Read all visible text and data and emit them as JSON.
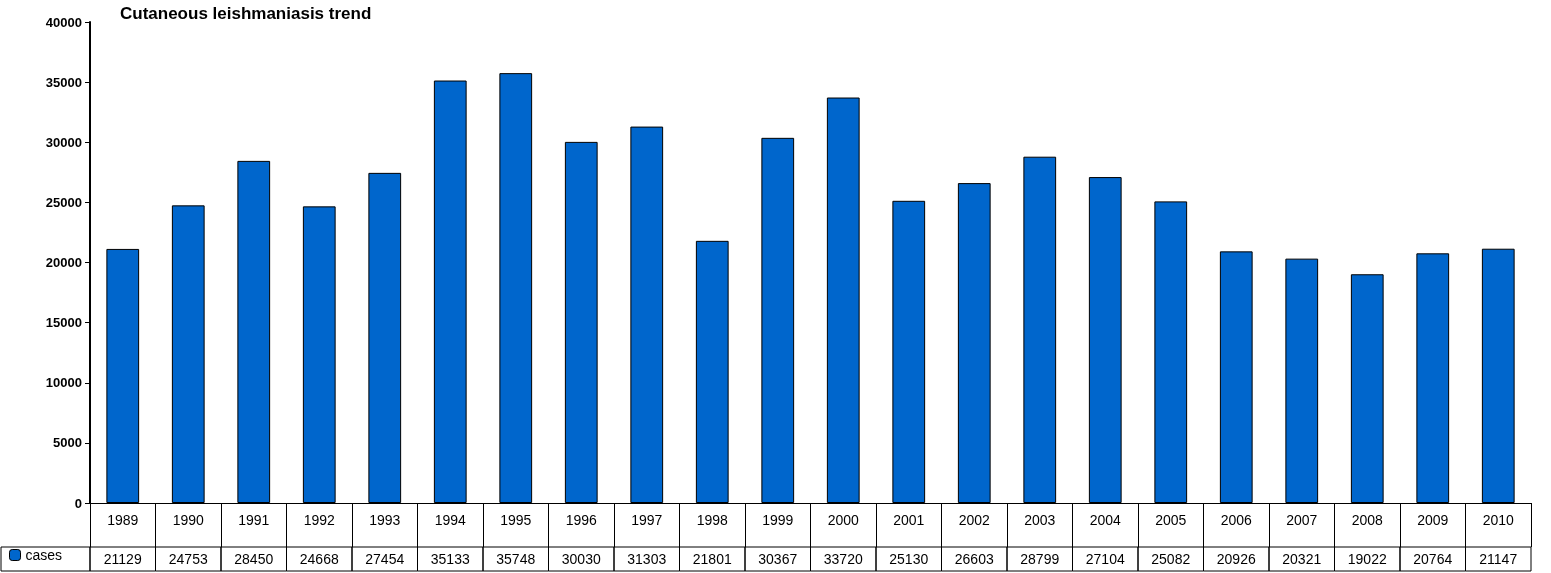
{
  "chart_data": {
    "type": "bar",
    "title": "Cutaneous leishmaniasis trend",
    "categories": [
      "1989",
      "1990",
      "1991",
      "1992",
      "1993",
      "1994",
      "1995",
      "1996",
      "1997",
      "1998",
      "1999",
      "2000",
      "2001",
      "2002",
      "2003",
      "2004",
      "2005",
      "2006",
      "2007",
      "2008",
      "2009",
      "2010"
    ],
    "series": [
      {
        "name": "cases",
        "color": "#0066cc",
        "values": [
          21129,
          24753,
          28450,
          24668,
          27454,
          35133,
          35748,
          30030,
          31303,
          21801,
          30367,
          33720,
          25130,
          26603,
          28799,
          27104,
          25082,
          20926,
          20321,
          19022,
          20764,
          21147
        ]
      }
    ],
    "ylim": [
      0,
      40000
    ],
    "yticks": [
      0,
      5000,
      10000,
      15000,
      20000,
      25000,
      30000,
      35000,
      40000
    ],
    "grid": false,
    "legend": "bottom left",
    "data_labels": true
  }
}
